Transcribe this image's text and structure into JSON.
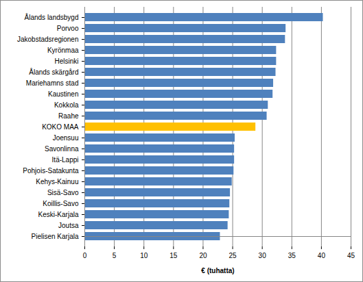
{
  "chart_data": {
    "type": "bar",
    "orientation": "horizontal",
    "categories": [
      "Ålands landsbygd",
      "Porvoo",
      "Jakobstadsregionen",
      "Kyrönmaa",
      "Helsinki",
      "Ålands skärgård",
      "Mariehamns stad",
      "Kaustinen",
      "Kokkola",
      "Raahe",
      "KOKO MAA",
      "Joensuu",
      "Savonlinna",
      "Itä-Lappi",
      "Pohjois-Satakunta",
      "Kehys-Kainuu",
      "Sisä-Savo",
      "Koillis-Savo",
      "Keski-Karjala",
      "Joutsa",
      "Pielisen Karjala"
    ],
    "values": [
      40.3,
      34.0,
      33.9,
      32.4,
      32.4,
      32.3,
      31.9,
      31.8,
      31.0,
      30.8,
      28.9,
      25.4,
      25.3,
      25.3,
      25.2,
      24.9,
      24.6,
      24.5,
      24.4,
      24.2,
      22.9
    ],
    "colors": [
      "#4f81bd",
      "#4f81bd",
      "#4f81bd",
      "#4f81bd",
      "#4f81bd",
      "#4f81bd",
      "#4f81bd",
      "#4f81bd",
      "#4f81bd",
      "#4f81bd",
      "#ffc000",
      "#4f81bd",
      "#4f81bd",
      "#4f81bd",
      "#4f81bd",
      "#4f81bd",
      "#4f81bd",
      "#4f81bd",
      "#4f81bd",
      "#4f81bd",
      "#4f81bd"
    ],
    "x_label": "€ (tuhatta)",
    "xlim": [
      0,
      45
    ],
    "xticks": [
      0,
      5,
      10,
      15,
      20,
      25,
      30,
      35,
      40,
      45
    ],
    "grid": true
  }
}
